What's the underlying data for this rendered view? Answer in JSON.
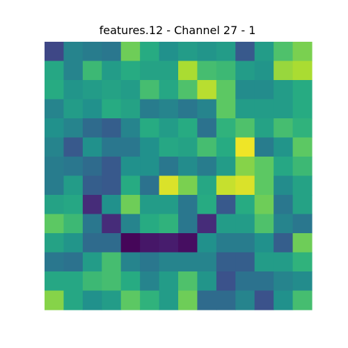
{
  "chart_data": {
    "type": "heatmap",
    "title": "features.12 - Channel 27 - 1",
    "colormap": "viridis",
    "axes_visible": false,
    "grid": false,
    "rows": 14,
    "cols": 14,
    "vmin": 0,
    "vmax": 1,
    "values": [
      [
        0.22,
        0.45,
        0.42,
        0.4,
        0.78,
        0.62,
        0.5,
        0.55,
        0.52,
        0.55,
        0.28,
        0.55,
        0.72,
        0.8
      ],
      [
        0.6,
        0.45,
        0.68,
        0.55,
        0.62,
        0.58,
        0.58,
        0.88,
        0.7,
        0.68,
        0.55,
        0.52,
        0.85,
        0.88
      ],
      [
        0.62,
        0.52,
        0.55,
        0.58,
        0.55,
        0.7,
        0.6,
        0.72,
        0.9,
        0.75,
        0.48,
        0.48,
        0.55,
        0.62
      ],
      [
        0.45,
        0.55,
        0.5,
        0.62,
        0.58,
        0.42,
        0.45,
        0.4,
        0.45,
        0.75,
        0.55,
        0.55,
        0.55,
        0.62
      ],
      [
        0.5,
        0.45,
        0.35,
        0.3,
        0.45,
        0.62,
        0.55,
        0.62,
        0.38,
        0.65,
        0.72,
        0.58,
        0.7,
        0.65
      ],
      [
        0.45,
        0.28,
        0.5,
        0.4,
        0.4,
        0.5,
        0.6,
        0.58,
        0.7,
        0.62,
        0.98,
        0.42,
        0.52,
        0.75
      ],
      [
        0.42,
        0.4,
        0.35,
        0.28,
        0.5,
        0.5,
        0.4,
        0.48,
        0.42,
        0.55,
        0.82,
        0.75,
        0.6,
        0.68
      ],
      [
        0.42,
        0.55,
        0.3,
        0.28,
        0.62,
        0.38,
        0.95,
        0.8,
        0.6,
        0.92,
        0.95,
        0.75,
        0.48,
        0.58
      ],
      [
        0.58,
        0.6,
        0.15,
        0.5,
        0.78,
        0.55,
        0.55,
        0.4,
        0.62,
        0.28,
        0.62,
        0.78,
        0.4,
        0.58
      ],
      [
        0.75,
        0.68,
        0.4,
        0.15,
        0.45,
        0.62,
        0.65,
        0.4,
        0.15,
        0.55,
        0.55,
        0.72,
        0.45,
        0.4
      ],
      [
        0.58,
        0.52,
        0.35,
        0.35,
        0.02,
        0.08,
        0.1,
        0.05,
        0.5,
        0.42,
        0.42,
        0.5,
        0.3,
        0.78
      ],
      [
        0.4,
        0.38,
        0.55,
        0.7,
        0.45,
        0.4,
        0.45,
        0.45,
        0.45,
        0.3,
        0.3,
        0.55,
        0.55,
        0.65
      ],
      [
        0.6,
        0.6,
        0.68,
        0.7,
        0.62,
        0.45,
        0.55,
        0.72,
        0.52,
        0.25,
        0.38,
        0.38,
        0.45,
        0.48
      ],
      [
        0.82,
        0.6,
        0.5,
        0.55,
        0.75,
        0.65,
        0.55,
        0.78,
        0.35,
        0.35,
        0.45,
        0.25,
        0.5,
        0.7
      ]
    ]
  }
}
